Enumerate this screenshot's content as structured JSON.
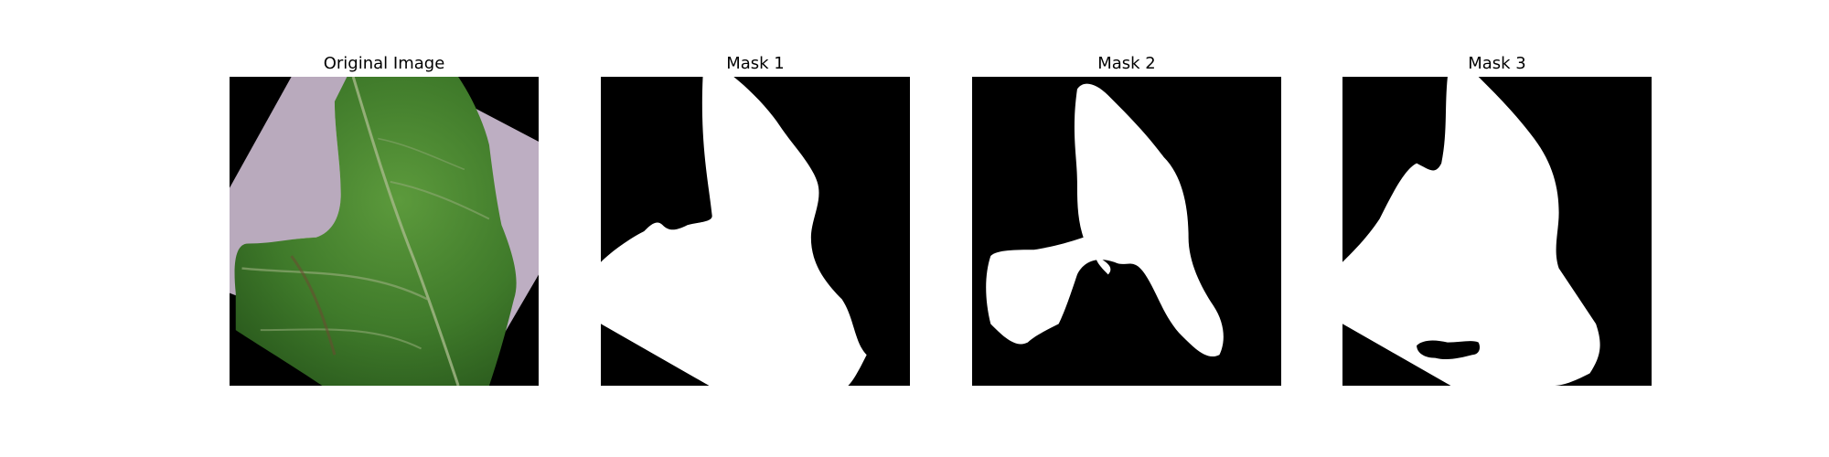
{
  "panels": [
    {
      "title": "Original Image"
    },
    {
      "title": "Mask 1"
    },
    {
      "title": "Mask 2"
    },
    {
      "title": "Mask 3"
    }
  ],
  "colors": {
    "background": "#ffffff",
    "mask_foreground": "#ffffff",
    "mask_background": "#000000",
    "leaf_green": "#3f7a2a",
    "paper_lavender": "#b9aabd"
  }
}
